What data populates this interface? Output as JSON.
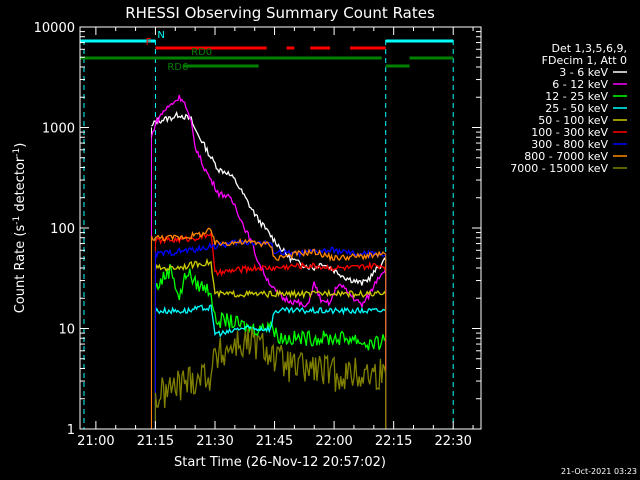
{
  "chart_data": {
    "type": "line",
    "title": "RHESSI Observing Summary Count Rates",
    "xlabel": "Start Time (26-Nov-12 20:57:02)",
    "ylabel_main": "Count Rate (s",
    "ylabel_sup1": "-1",
    "ylabel_mid": " detector",
    "ylabel_sup2": "-1",
    "ylabel_end": ")",
    "y_scale": "log",
    "ylim": [
      1,
      10000
    ],
    "xlim_minutes": [
      -4,
      97
    ],
    "time_origin": "21:00",
    "x_ticks": [
      {
        "label": "21:00",
        "t": 0
      },
      {
        "label": "21:15",
        "t": 15
      },
      {
        "label": "21:30",
        "t": 30
      },
      {
        "label": "21:45",
        "t": 45
      },
      {
        "label": "22:00",
        "t": 60
      },
      {
        "label": "22:15",
        "t": 75
      },
      {
        "label": "22:30",
        "t": 90
      }
    ],
    "y_ticks": [
      {
        "label": "1",
        "v": 1
      },
      {
        "label": "10",
        "v": 10
      },
      {
        "label": "100",
        "v": 100
      },
      {
        "label": "1000",
        "v": 1000
      },
      {
        "label": "10000",
        "v": 10000
      }
    ],
    "legend_header": [
      "Det 1,3,5,6,9,",
      "FDecim 1, Att 0"
    ],
    "series": [
      {
        "name": "3 - 6 keV",
        "color": "#ffffff",
        "t": [
          14,
          15,
          17,
          19,
          21,
          22,
          24,
          25,
          27,
          29,
          31,
          33,
          35,
          37,
          39,
          41,
          43,
          45,
          47,
          49,
          51,
          53,
          55,
          57,
          59,
          61,
          63,
          65,
          67,
          69,
          71,
          73
        ],
        "values": [
          1000,
          1150,
          1200,
          1250,
          1350,
          1300,
          1200,
          950,
          700,
          500,
          380,
          360,
          300,
          220,
          160,
          120,
          95,
          75,
          60,
          50,
          45,
          42,
          40,
          45,
          40,
          36,
          32,
          30,
          28,
          32,
          40,
          48
        ]
      },
      {
        "name": "6 - 12 keV",
        "color": "#ff00ff",
        "t": [
          14,
          15,
          17,
          19,
          21,
          22,
          23,
          24,
          25,
          27,
          29,
          31,
          33,
          35,
          37,
          39,
          41,
          43,
          45,
          47,
          49,
          51,
          53,
          55,
          57,
          59,
          61,
          63,
          65,
          67,
          69,
          71,
          73
        ],
        "values": [
          800,
          1100,
          1450,
          1700,
          2000,
          1900,
          1450,
          1100,
          650,
          420,
          300,
          220,
          210,
          170,
          110,
          75,
          45,
          32,
          24,
          20,
          19,
          18,
          16,
          28,
          18,
          18,
          28,
          24,
          20,
          17,
          22,
          32,
          40
        ]
      },
      {
        "name": "12 - 25 keV",
        "color": "#00ff00",
        "t": [
          15,
          17,
          19,
          21,
          23,
          25,
          27,
          29,
          30,
          33,
          36,
          39,
          42,
          44,
          45,
          47,
          50,
          53,
          56,
          59,
          62,
          65,
          68,
          71,
          73
        ],
        "values": [
          25,
          32,
          40,
          20,
          38,
          28,
          26,
          24,
          12,
          12,
          11,
          10,
          10,
          12,
          9,
          8,
          8,
          8,
          8,
          8,
          8,
          8,
          7,
          7,
          8
        ]
      },
      {
        "name": "25 - 50 keV",
        "color": "#00ffff",
        "t": [
          15,
          19,
          23,
          27,
          29,
          30,
          33,
          36,
          39,
          42,
          44,
          45,
          50,
          55,
          60,
          65,
          70,
          73
        ],
        "values": [
          15,
          15,
          15,
          16,
          16,
          9,
          9,
          10,
          10,
          10,
          10,
          15,
          15,
          15,
          15,
          15,
          15,
          15
        ]
      },
      {
        "name": "50 - 100 keV",
        "color": "#cccc00",
        "t": [
          15,
          19,
          23,
          27,
          29,
          30,
          35,
          40,
          44,
          45,
          50,
          55,
          60,
          65,
          70,
          73
        ],
        "values": [
          40,
          40,
          42,
          45,
          45,
          22,
          22,
          22,
          22,
          22,
          22,
          22,
          23,
          22,
          22,
          22
        ]
      },
      {
        "name": "100 - 300 keV",
        "color": "#ff0000",
        "t": [
          15,
          19,
          23,
          27,
          29,
          30,
          35,
          40,
          44,
          45,
          50,
          55,
          60,
          65,
          70,
          73
        ],
        "values": [
          75,
          76,
          78,
          82,
          90,
          35,
          38,
          40,
          40,
          40,
          42,
          42,
          40,
          40,
          42,
          42
        ]
      },
      {
        "name": "300 - 800 keV",
        "color": "#0000ff",
        "t": [
          15,
          19,
          23,
          27,
          29,
          30,
          35,
          40,
          44,
          45,
          50,
          55,
          60,
          65,
          70,
          73
        ],
        "values": [
          55,
          57,
          60,
          62,
          68,
          65,
          72,
          72,
          70,
          58,
          55,
          58,
          60,
          55,
          55,
          55
        ]
      },
      {
        "name": "800 - 7000 keV",
        "color": "#ff8800",
        "t": [
          14,
          15,
          19,
          23,
          27,
          29,
          30,
          35,
          40,
          44,
          45,
          50,
          55,
          60,
          65,
          70,
          73
        ],
        "values": [
          80,
          80,
          80,
          82,
          88,
          95,
          70,
          72,
          72,
          68,
          50,
          55,
          58,
          50,
          52,
          53,
          55
        ]
      },
      {
        "name": "7000 - 15000 keV",
        "color": "#808000",
        "t": [
          15,
          19,
          23,
          27,
          29,
          30,
          35,
          40,
          44,
          45,
          50,
          55,
          60,
          65,
          70,
          73
        ],
        "values": [
          2,
          2.5,
          3,
          3.5,
          3.5,
          5,
          7,
          7,
          6,
          5,
          4,
          4,
          3.5,
          3.5,
          3.5,
          3.5
        ]
      }
    ],
    "flag_bars": [
      {
        "label": "N",
        "color": "#00ffff",
        "t_start": -4,
        "t_end": 15,
        "level": 1
      },
      {
        "label": "",
        "color": "#00ffff",
        "t_start": 73,
        "t_end": 90,
        "level": 1
      },
      {
        "label": "F",
        "color": "#ff0000",
        "t_start": 15,
        "t_end": 43,
        "level": 2
      },
      {
        "label": "",
        "color": "#ff0000",
        "t_start": 48,
        "t_end": 50,
        "level": 2
      },
      {
        "label": "",
        "color": "#ff0000",
        "t_start": 54,
        "t_end": 59,
        "level": 2
      },
      {
        "label": "",
        "color": "#ff0000",
        "t_start": 64,
        "t_end": 73,
        "level": 2
      },
      {
        "label": "",
        "color": "#008000",
        "t_start": -4,
        "t_end": 15,
        "level": 3
      },
      {
        "label": "RD0",
        "color": "#008000",
        "t_start": 15,
        "t_end": 45,
        "level": 3
      },
      {
        "label": "",
        "color": "#008000",
        "t_start": 45,
        "t_end": 72,
        "level": 3
      },
      {
        "label": "",
        "color": "#008000",
        "t_start": 79,
        "t_end": 90,
        "level": 3
      },
      {
        "label": "RD6",
        "color": "#008000",
        "t_start": 22,
        "t_end": 41,
        "level": 4
      },
      {
        "label": "",
        "color": "#008000",
        "t_start": 73,
        "t_end": 79,
        "level": 4
      }
    ],
    "cyan_markers_t": [
      -3,
      15,
      73,
      90
    ],
    "legend_position": "right"
  },
  "footer_timestamp": "21-Oct-2021 03:23"
}
